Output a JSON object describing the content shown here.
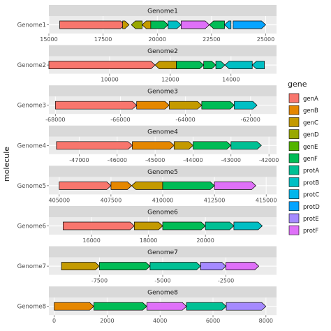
{
  "chart_data": {
    "type": "gene-arrow-map",
    "ylabel": "molecule",
    "legend": {
      "title": "gene",
      "position": "right",
      "entries": [
        {
          "name": "genA",
          "color": "#f8766d"
        },
        {
          "name": "genB",
          "color": "#e58700"
        },
        {
          "name": "genC",
          "color": "#c49a00"
        },
        {
          "name": "genD",
          "color": "#99a800"
        },
        {
          "name": "genE",
          "color": "#53b400"
        },
        {
          "name": "genF",
          "color": "#00bc56"
        },
        {
          "name": "protA",
          "color": "#00c094"
        },
        {
          "name": "protB",
          "color": "#00bfc4"
        },
        {
          "name": "protC",
          "color": "#00b6eb"
        },
        {
          "name": "protD",
          "color": "#06a4ff"
        },
        {
          "name": "protE",
          "color": "#a58aff"
        },
        {
          "name": "protF",
          "color": "#df70f8"
        }
      ]
    },
    "panels": [
      {
        "name": "Genome1",
        "xlim": [
          15000,
          25500
        ],
        "ticks": [
          15000,
          17500,
          20000,
          22500,
          25000
        ],
        "tick_labels": [
          "15000",
          "17500",
          "20000",
          "22500",
          "25000"
        ],
        "genes": [
          {
            "start": 15500,
            "end": 18500,
            "gene": "genA",
            "dir": 1
          },
          {
            "start": 18400,
            "end": 18700,
            "gene": "genC",
            "dir": 1
          },
          {
            "start": 18800,
            "end": 19300,
            "gene": "genD",
            "dir": -1
          },
          {
            "start": 19300,
            "end": 19700,
            "gene": "genC",
            "dir": -1
          },
          {
            "start": 19700,
            "end": 20500,
            "gene": "genF",
            "dir": 1
          },
          {
            "start": 20500,
            "end": 21100,
            "gene": "protB",
            "dir": 1
          },
          {
            "start": 21100,
            "end": 22400,
            "gene": "protF",
            "dir": 1
          },
          {
            "start": 22400,
            "end": 23100,
            "gene": "genF",
            "dir": -1
          },
          {
            "start": 23100,
            "end": 23400,
            "gene": "protC",
            "dir": -1
          },
          {
            "start": 23500,
            "end": 25000,
            "gene": "protD",
            "dir": 1
          }
        ]
      },
      {
        "name": "Genome2",
        "xlim": [
          8000,
          15500
        ],
        "ticks": [
          10000,
          12000,
          14000
        ],
        "tick_labels": [
          "10000",
          "12000",
          "14000"
        ],
        "genes": [
          {
            "start": 8000,
            "end": 11500,
            "gene": "genA",
            "dir": 1
          },
          {
            "start": 11500,
            "end": 12200,
            "gene": "genC",
            "dir": -1
          },
          {
            "start": 12200,
            "end": 13100,
            "gene": "genF",
            "dir": 1
          },
          {
            "start": 13100,
            "end": 13500,
            "gene": "genF",
            "dir": 1
          },
          {
            "start": 13500,
            "end": 13800,
            "gene": "protA",
            "dir": 1
          },
          {
            "start": 13800,
            "end": 14700,
            "gene": "protB",
            "dir": -1
          },
          {
            "start": 14700,
            "end": 15100,
            "gene": "protB",
            "dir": -1
          }
        ]
      },
      {
        "name": "Genome3",
        "xlim": [
          -68200,
          -61200
        ],
        "ticks": [
          -68000,
          -66000,
          -64000,
          -62000
        ],
        "tick_labels": [
          "-68000",
          "-66000",
          "-64000",
          "-62000"
        ],
        "genes": [
          {
            "start": -68000,
            "end": -65500,
            "gene": "genA",
            "dir": 1
          },
          {
            "start": -65500,
            "end": -64500,
            "gene": "genB",
            "dir": 1
          },
          {
            "start": -64500,
            "end": -63500,
            "gene": "genC",
            "dir": 1
          },
          {
            "start": -63500,
            "end": -62500,
            "gene": "genF",
            "dir": 1
          },
          {
            "start": -62500,
            "end": -61800,
            "gene": "protB",
            "dir": 1
          }
        ]
      },
      {
        "name": "Genome4",
        "xlim": [
          -47800,
          -41800
        ],
        "ticks": [
          -47000,
          -46000,
          -45000,
          -44000,
          -43000,
          -42000
        ],
        "tick_labels": [
          "-47000",
          "-46000",
          "-45000",
          "-44000",
          "-43000",
          "-42000"
        ],
        "genes": [
          {
            "start": -47600,
            "end": -45600,
            "gene": "genA",
            "dir": 1
          },
          {
            "start": -45600,
            "end": -44500,
            "gene": "genB",
            "dir": 1
          },
          {
            "start": -44500,
            "end": -44000,
            "gene": "genC",
            "dir": 1
          },
          {
            "start": -44000,
            "end": -43000,
            "gene": "genF",
            "dir": 1
          },
          {
            "start": -43000,
            "end": -42200,
            "gene": "protA",
            "dir": 1
          }
        ]
      },
      {
        "name": "Genome5",
        "xlim": [
          404500,
          415500
        ],
        "ticks": [
          405000,
          407500,
          410000,
          412500,
          415000
        ],
        "tick_labels": [
          "405000",
          "407500",
          "410000",
          "412500",
          "415000"
        ],
        "genes": [
          {
            "start": 405000,
            "end": 407500,
            "gene": "genA",
            "dir": 1
          },
          {
            "start": 407500,
            "end": 408500,
            "gene": "genB",
            "dir": 1
          },
          {
            "start": 408500,
            "end": 410000,
            "gene": "genC",
            "dir": -1
          },
          {
            "start": 410000,
            "end": 412500,
            "gene": "genF",
            "dir": 1
          },
          {
            "start": 412500,
            "end": 414500,
            "gene": "protF",
            "dir": 1
          }
        ]
      },
      {
        "name": "Genome6",
        "xlim": [
          14500,
          22500
        ],
        "ticks": [
          16000,
          18000,
          20000
        ],
        "tick_labels": [
          "16000",
          "18000",
          "20000"
        ],
        "genes": [
          {
            "start": 15000,
            "end": 17500,
            "gene": "genA",
            "dir": 1
          },
          {
            "start": 17500,
            "end": 18500,
            "gene": "genC",
            "dir": 1
          },
          {
            "start": 18500,
            "end": 20000,
            "gene": "genF",
            "dir": 1
          },
          {
            "start": 20000,
            "end": 21000,
            "gene": "protA",
            "dir": 1
          },
          {
            "start": 21000,
            "end": 22000,
            "gene": "protB",
            "dir": 1
          }
        ]
      },
      {
        "name": "Genome7",
        "xlim": [
          -9500,
          -500
        ],
        "ticks": [
          -7500,
          -5000,
          -2500
        ],
        "tick_labels": [
          "-7500",
          "-5000",
          "-2500"
        ],
        "genes": [
          {
            "start": -9000,
            "end": -7500,
            "gene": "genC",
            "dir": 1
          },
          {
            "start": -7500,
            "end": -5500,
            "gene": "genF",
            "dir": 1
          },
          {
            "start": -5500,
            "end": -3500,
            "gene": "protA",
            "dir": 1
          },
          {
            "start": -3500,
            "end": -2500,
            "gene": "protE",
            "dir": 1
          },
          {
            "start": -2500,
            "end": -1200,
            "gene": "protF",
            "dir": 1
          }
        ]
      },
      {
        "name": "Genome8",
        "xlim": [
          -200,
          8400
        ],
        "ticks": [
          0,
          2000,
          4000,
          6000,
          8000
        ],
        "tick_labels": [
          "0",
          "2000",
          "4000",
          "6000",
          "8000"
        ],
        "genes": [
          {
            "start": 0,
            "end": 1500,
            "gene": "genB",
            "dir": 1
          },
          {
            "start": 1500,
            "end": 3500,
            "gene": "genF",
            "dir": 1
          },
          {
            "start": 3500,
            "end": 5000,
            "gene": "protF",
            "dir": 1
          },
          {
            "start": 5000,
            "end": 6500,
            "gene": "protA",
            "dir": 1
          },
          {
            "start": 6500,
            "end": 8000,
            "gene": "protE",
            "dir": 1
          }
        ]
      }
    ]
  }
}
